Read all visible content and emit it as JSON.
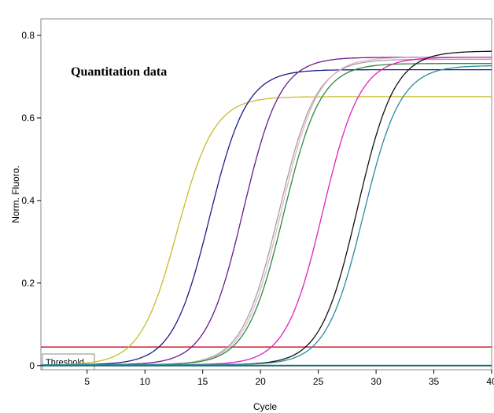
{
  "chart_data": {
    "type": "line",
    "title": "",
    "xlabel": "Cycle",
    "ylabel": "Norm. Fluoro.",
    "xlim": [
      1,
      40
    ],
    "ylim": [
      -0.01,
      0.84
    ],
    "xticks": [
      5,
      10,
      15,
      20,
      25,
      30,
      35,
      40
    ],
    "yticks": [
      0,
      0.2,
      0.4,
      0.6,
      0.8
    ],
    "grid": false,
    "annotation": "Quantitation data",
    "threshold": {
      "label": "Threshold",
      "value": 0.045,
      "color": "#cc2233"
    },
    "series": [
      {
        "color": "#c8bc2a",
        "plateau": 0.65,
        "midpoint": 12.8,
        "slope": 1.6
      },
      {
        "color": "#1c1c8c",
        "plateau": 0.715,
        "midpoint": 15.6,
        "slope": 1.6
      },
      {
        "color": "#6a1a8a",
        "plateau": 0.745,
        "midpoint": 18.5,
        "slope": 1.6
      },
      {
        "color": "#a0a0a0",
        "plateau": 0.74,
        "midpoint": 21.6,
        "slope": 1.6
      },
      {
        "color": "#e8b0d0",
        "plateau": 0.745,
        "midpoint": 21.8,
        "slope": 1.6
      },
      {
        "color": "#2a8a3a",
        "plateau": 0.73,
        "midpoint": 22.0,
        "slope": 1.6
      },
      {
        "color": "#e020c0",
        "plateau": 0.745,
        "midpoint": 25.4,
        "slope": 1.6
      },
      {
        "color": "#111111",
        "plateau": 0.76,
        "midpoint": 28.4,
        "slope": 1.6
      },
      {
        "color": "#2a8aa0",
        "plateau": 0.725,
        "midpoint": 28.9,
        "slope": 1.6
      }
    ],
    "baseline": {
      "value": 0,
      "color": "#2a6a6a"
    }
  }
}
